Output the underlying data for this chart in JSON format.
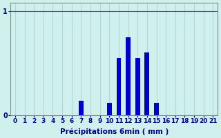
{
  "xlabel": "Précipitations 6min ( mm )",
  "categories": [
    0,
    1,
    2,
    3,
    4,
    5,
    6,
    7,
    8,
    9,
    10,
    11,
    12,
    13,
    14,
    15,
    16,
    17,
    18,
    19,
    20,
    21
  ],
  "values": [
    0,
    0,
    0,
    0,
    0,
    0,
    0,
    0.14,
    0,
    0,
    0.12,
    0.55,
    0.75,
    0.55,
    0.6,
    0.12,
    0,
    0,
    0,
    0,
    0,
    0
  ],
  "bar_color": "#0000cc",
  "background_color": "#cff0ec",
  "axis_color": "#888888",
  "text_color": "#000080",
  "ylim_max": 1.08,
  "yticks": [
    0,
    1
  ],
  "grid_color": "#b0d8d4",
  "figsize": [
    3.2,
    2.0
  ],
  "dpi": 100,
  "hline_color": "#cc0000"
}
